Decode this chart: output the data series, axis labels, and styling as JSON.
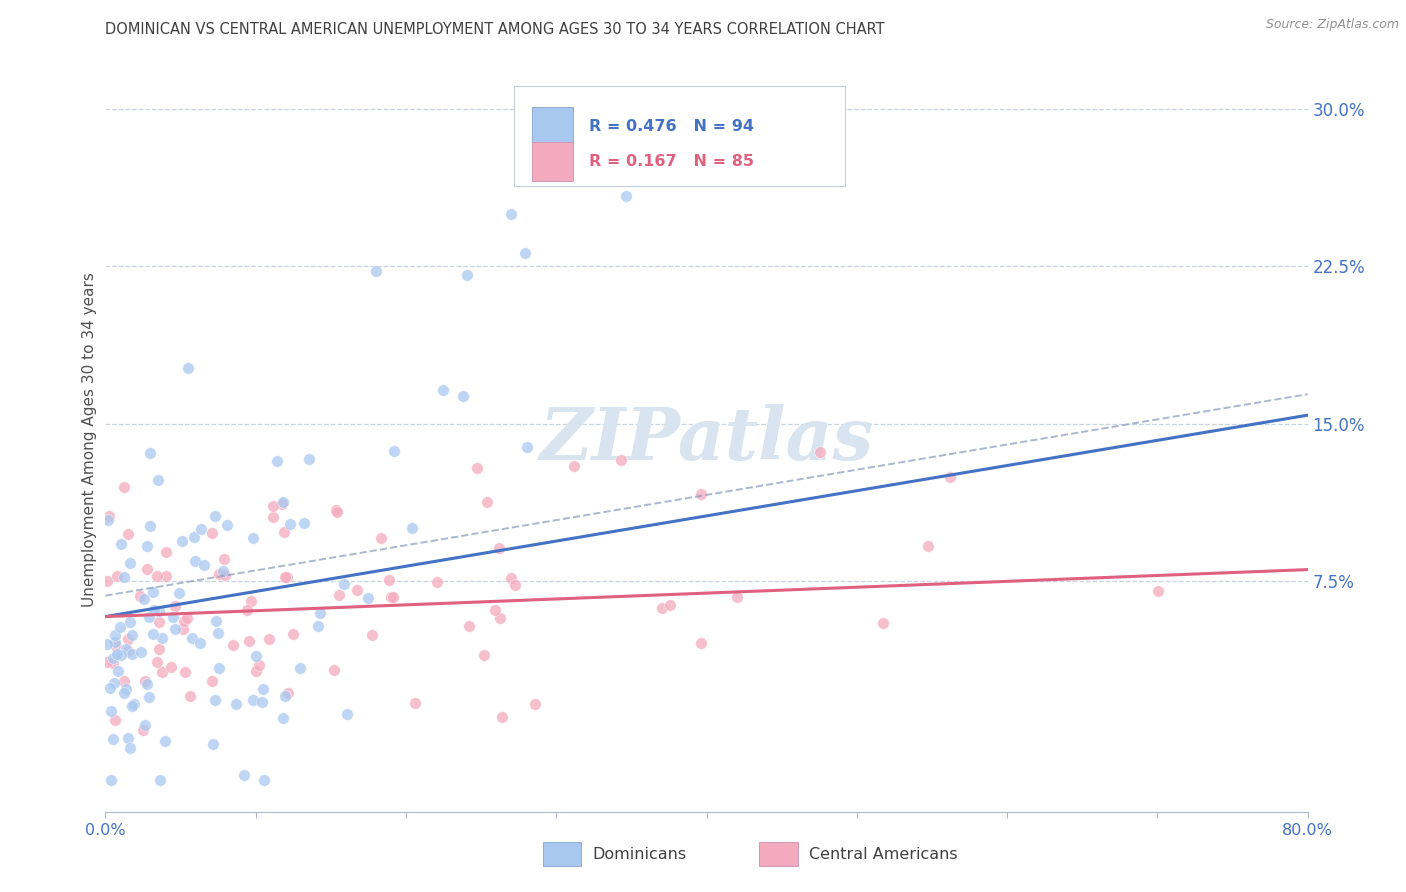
{
  "title": "DOMINICAN VS CENTRAL AMERICAN UNEMPLOYMENT AMONG AGES 30 TO 34 YEARS CORRELATION CHART",
  "source": "Source: ZipAtlas.com",
  "ylabel": "Unemployment Among Ages 30 to 34 years",
  "xlim": [
    0.0,
    0.8
  ],
  "ylim": [
    -0.035,
    0.32
  ],
  "xtick_positions": [
    0.0,
    0.1,
    0.2,
    0.3,
    0.4,
    0.5,
    0.6,
    0.7,
    0.8
  ],
  "xtick_labels": [
    "0.0%",
    "",
    "",
    "",
    "",
    "",
    "",
    "",
    "80.0%"
  ],
  "ytick_positions": [
    0.075,
    0.15,
    0.225,
    0.3
  ],
  "ytick_labels": [
    "7.5%",
    "15.0%",
    "22.5%",
    "30.0%"
  ],
  "legend_labels": [
    "Dominicans",
    "Central Americans"
  ],
  "legend_r_values": [
    "R = 0.476",
    "R = 0.167"
  ],
  "legend_n_values": [
    "N = 94",
    "N = 85"
  ],
  "blue_dot_color": "#A8C8F0",
  "pink_dot_color": "#F4AABE",
  "blue_line_color": "#4472C4",
  "pink_line_color": "#E06080",
  "dash_line_color": "#8899BB",
  "title_color": "#404040",
  "axis_color": "#4472C4",
  "grid_color": "#C8D4E0",
  "watermark_color": "#D8E4F0",
  "blue_n": 94,
  "pink_n": 85,
  "blue_intercept": 0.058,
  "blue_slope": 0.12,
  "pink_intercept": 0.058,
  "pink_slope": 0.028,
  "seed_blue": 42,
  "seed_pink": 99,
  "dot_size": 70,
  "dot_alpha": 0.75,
  "line_width": 2.2
}
